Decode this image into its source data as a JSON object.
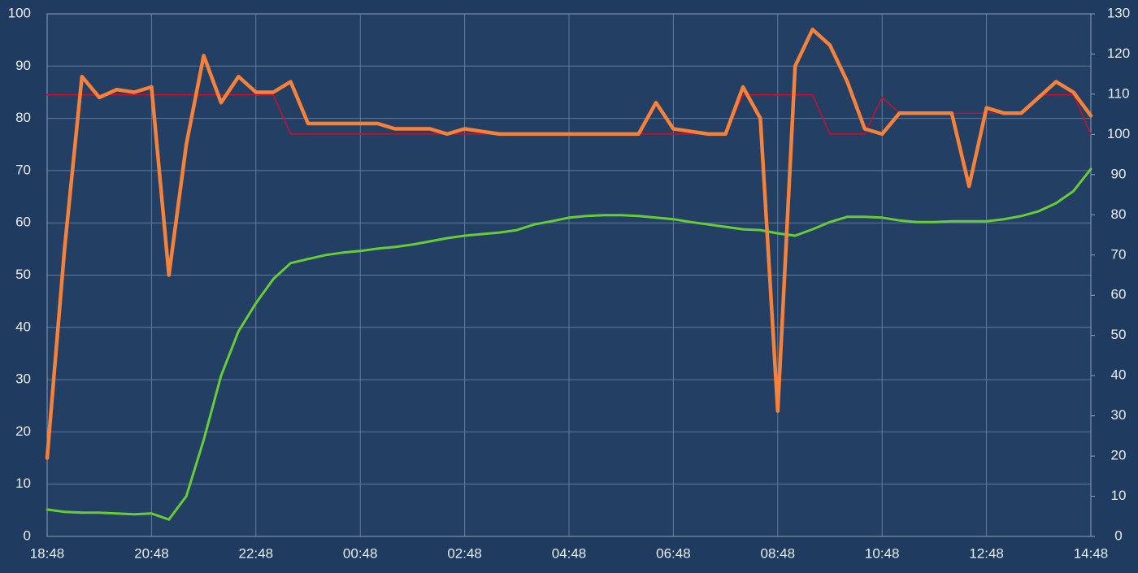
{
  "chart_data": {
    "type": "line",
    "categories": [
      "18:48",
      null,
      null,
      null,
      null,
      null,
      "20:48",
      null,
      null,
      null,
      null,
      null,
      "22:48",
      null,
      null,
      null,
      null,
      null,
      "00:48",
      null,
      null,
      null,
      null,
      null,
      "02:48",
      null,
      null,
      null,
      null,
      null,
      "04:48",
      null,
      null,
      null,
      null,
      null,
      "06:48",
      null,
      null,
      null,
      null,
      null,
      "08:48",
      null,
      null,
      null,
      null,
      null,
      "10:48",
      null,
      null,
      null,
      null,
      null,
      "12:48",
      null,
      null,
      null,
      null,
      null,
      "14:48"
    ],
    "series": [
      {
        "color": "#67cc38",
        "axis": "y2",
        "values": [
          6.7,
          6.1,
          5.9,
          5.9,
          5.7,
          5.5,
          5.7,
          4.2,
          10,
          24,
          40,
          51,
          58,
          64,
          68,
          69,
          70,
          70.6,
          71,
          71.6,
          72,
          72.6,
          73.4,
          74.2,
          74.8,
          75.2,
          75.6,
          76.2,
          77.6,
          78.4,
          79.3,
          79.7,
          79.9,
          79.9,
          79.7,
          79.3,
          78.9,
          78.2,
          77.6,
          77,
          76.4,
          76.2,
          75.4,
          74.8,
          76.4,
          78.2,
          79.5,
          79.5,
          79.3,
          78.6,
          78.2,
          78.2,
          78.4,
          78.4,
          78.4,
          78.9,
          79.7,
          80.9,
          82.9,
          85.9,
          91.4
        ]
      },
      {
        "color": "#c8102e",
        "values": [
          84.5,
          84.5,
          84.5,
          84.5,
          84.5,
          84.5,
          84.5,
          84.5,
          84.5,
          84.5,
          84.5,
          84.5,
          84.5,
          84.5,
          77,
          77,
          77,
          77,
          77,
          77,
          77,
          77,
          77,
          77,
          77,
          77,
          77,
          77,
          77,
          77,
          77,
          77,
          77,
          77,
          77,
          77,
          77,
          77,
          77,
          77,
          84.5,
          84.5,
          84.5,
          84.5,
          84.5,
          77,
          77,
          77,
          84,
          81,
          81,
          81,
          81,
          81,
          81,
          81,
          81,
          84.5,
          84.5,
          84.5,
          77
        ]
      },
      {
        "color": "#f5823a",
        "values": [
          15,
          55,
          88,
          84,
          85.5,
          85,
          86,
          50,
          75,
          92,
          83,
          88,
          85,
          85,
          87,
          79,
          79,
          79,
          79,
          79,
          78,
          78,
          78,
          77,
          78,
          77.5,
          77,
          77,
          77,
          77,
          77,
          77,
          77,
          77,
          77,
          83,
          78,
          77.5,
          77,
          77,
          86,
          80,
          24,
          90,
          97,
          94,
          87,
          78,
          77,
          81,
          81,
          81,
          81,
          67,
          82,
          81,
          81,
          84,
          87,
          85,
          80.5
        ]
      }
    ],
    "ylim": [
      0,
      100
    ],
    "yticks": [
      0,
      10,
      20,
      30,
      40,
      50,
      60,
      70,
      80,
      90,
      100
    ],
    "y2lim": [
      0,
      130
    ],
    "y2ticks": [
      0,
      10,
      20,
      30,
      40,
      50,
      60,
      70,
      80,
      90,
      100,
      110,
      120,
      130
    ],
    "grid": true
  }
}
